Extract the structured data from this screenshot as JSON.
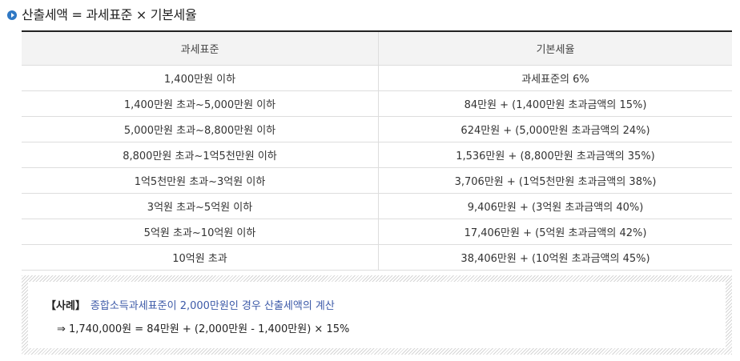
{
  "heading": {
    "icon": "arrow-bullet-icon",
    "accent_color": "#2f78c4",
    "text": "산출세액 = 과세표준 × 기본세율"
  },
  "table": {
    "headers": [
      "과세표준",
      "기본세율"
    ],
    "rows": [
      [
        "1,400만원 이하",
        "과세표준의 6%"
      ],
      [
        "1,400만원 초과~5,000만원 이하",
        "84만원 + (1,400만원 초과금액의 15%)"
      ],
      [
        "5,000만원 초과~8,800만원 이하",
        "624만원 + (5,000만원 초과금액의 24%)"
      ],
      [
        "8,800만원 초과~1억5천만원 이하",
        "1,536만원 + (8,800만원 초과금액의 35%)"
      ],
      [
        "1억5천만원 초과~3억원 이하",
        "3,706만원 + (1억5천만원 초과금액의 38%)"
      ],
      [
        "3억원 초과~5억원 이하",
        "9,406만원 + (3억원 초과금액의 40%)"
      ],
      [
        "5억원 초과~10억원 이하",
        "17,406만원 + (5억원 초과금액의 42%)"
      ],
      [
        "10억원 초과",
        "38,406만원 + (10억원 초과금액의 45%)"
      ]
    ]
  },
  "example": {
    "tag": "【사례】",
    "title": "종합소득과세표준이 2,000만원인 경우 산출세액의 계산",
    "title_color": "#3d5aa8",
    "formula": "⇒ 1,740,000원 = 84만원 + (2,000만원 - 1,400만원) × 15%"
  }
}
